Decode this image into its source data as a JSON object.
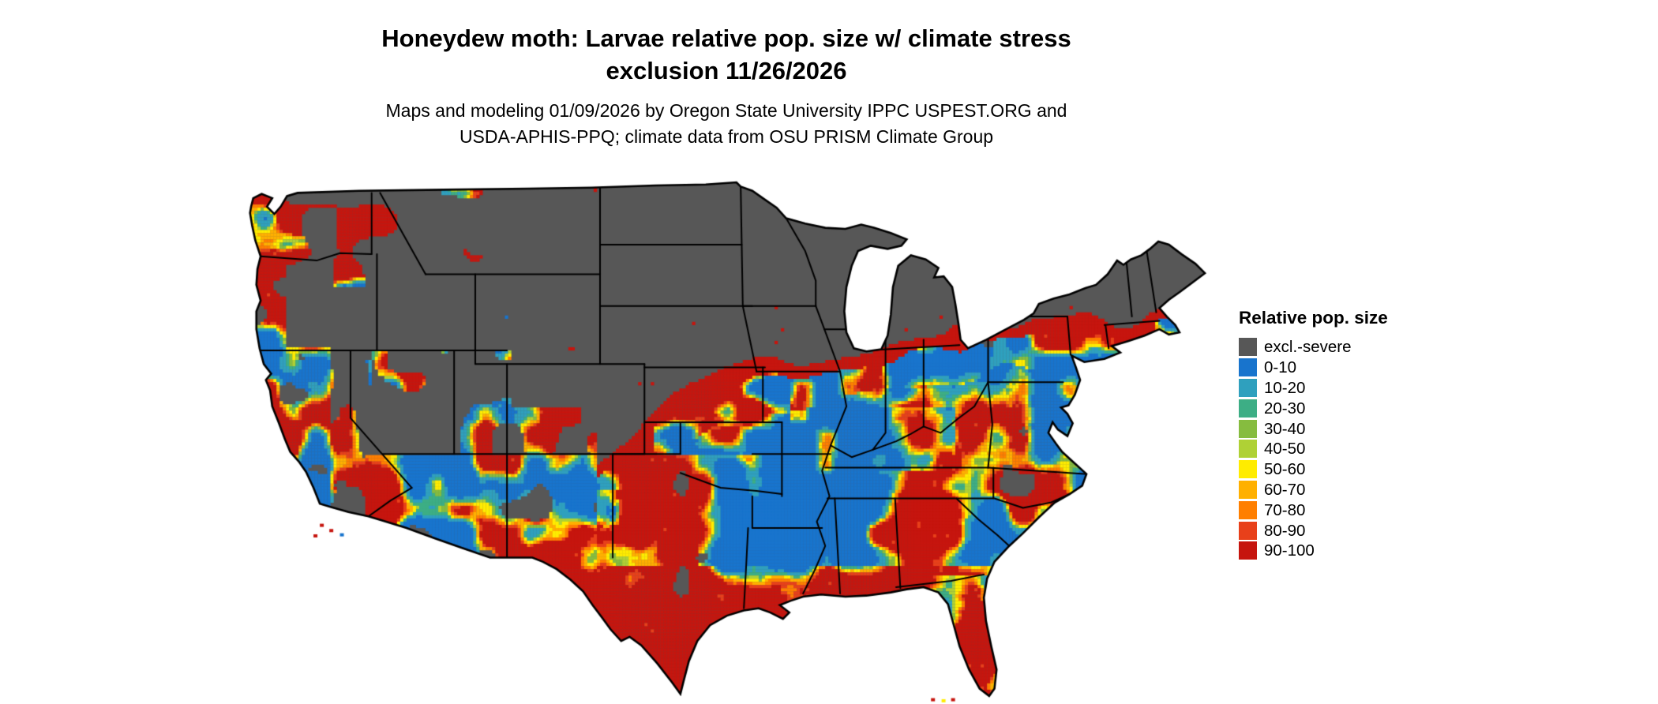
{
  "title": {
    "line1": "Honeydew moth: Larvae relative pop. size w/ climate stress",
    "line2": "exclusion 11/26/2026"
  },
  "subtitle": {
    "line1": "Maps and modeling 01/09/2026 by Oregon State University IPPC USPEST.ORG and",
    "line2": "USDA-APHIS-PPQ; climate data from OSU PRISM Climate Group"
  },
  "map": {
    "region": "Continental United States",
    "background": "#ffffff",
    "boundary_color": "#000000"
  },
  "legend": {
    "title": "Relative pop. size",
    "items": [
      {
        "label": "excl.-severe",
        "color": "#575757"
      },
      {
        "label": "0-10",
        "color": "#1874CD"
      },
      {
        "label": "10-20",
        "color": "#2FA0BE"
      },
      {
        "label": "20-30",
        "color": "#3DAE85"
      },
      {
        "label": "30-40",
        "color": "#86BC3F"
      },
      {
        "label": "40-50",
        "color": "#AFD135"
      },
      {
        "label": "50-60",
        "color": "#FFEC00"
      },
      {
        "label": "60-70",
        "color": "#FFB000"
      },
      {
        "label": "70-80",
        "color": "#FF7F00"
      },
      {
        "label": "80-90",
        "color": "#E8401A"
      },
      {
        "label": "90-100",
        "color": "#C6150E"
      }
    ]
  }
}
